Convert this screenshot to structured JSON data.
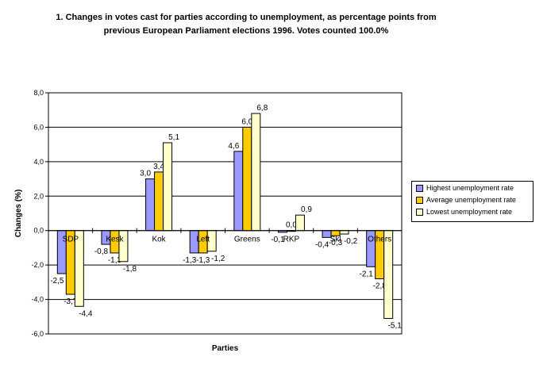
{
  "chart_data": {
    "type": "bar",
    "title": "1. Changes in votes cast for parties according to unemployment, as percentage points from",
    "subtitle": "previous European Parliament elections 1996. Votes counted 100.0%",
    "xlabel": "Parties",
    "ylabel": "Changes (%)",
    "ylim": [
      -6,
      8
    ],
    "yticks": [
      "-6,0",
      "-4,0",
      "-2,0",
      "0,0",
      "2,0",
      "4,0",
      "6,0",
      "8,0"
    ],
    "grid": true,
    "legend_position": "right",
    "categories": [
      "SDP",
      "Kesk",
      "Kok",
      "Left",
      "Greens",
      "RKP",
      "Skl",
      "Others"
    ],
    "series": [
      {
        "name": "Highest unemployment rate",
        "color": "#9999ff",
        "values": [
          -2.5,
          -0.8,
          3.0,
          -1.3,
          4.6,
          -0.1,
          -0.4,
          -2.1
        ],
        "labels": [
          "-2,5",
          "-0,8",
          "3,0",
          "-1,3",
          "4,6",
          "-0,1",
          "-0,4",
          "-2,1"
        ]
      },
      {
        "name": "Average unemployment rate",
        "color": "#ffcc00",
        "values": [
          -3.7,
          -1.3,
          3.4,
          -1.3,
          6.0,
          0.0,
          -0.3,
          -2.8
        ],
        "labels": [
          "-3,7",
          "-1,3",
          "3,4",
          "-1,3",
          "6,0",
          "0,0",
          "-0,3",
          "-2,8"
        ]
      },
      {
        "name": "Lowest unemployment rate",
        "color": "#ffffcc",
        "values": [
          -4.4,
          -1.8,
          5.1,
          -1.2,
          6.8,
          0.9,
          -0.2,
          -5.1
        ],
        "labels": [
          "-4,4",
          "-1,8",
          "5,1",
          "-1,2",
          "6,8",
          "0,9",
          "-0,2",
          "-5,1"
        ]
      }
    ]
  }
}
